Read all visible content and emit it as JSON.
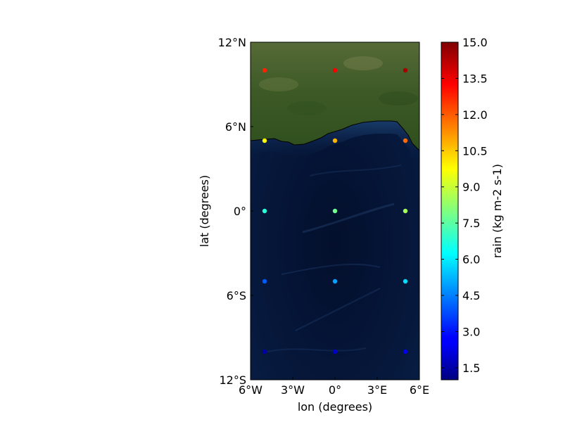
{
  "chart_data": {
    "type": "scatter",
    "xlabel": "lon (degrees)",
    "ylabel": "lat (degrees)",
    "xlim": [
      -6,
      6
    ],
    "ylim": [
      -12,
      12
    ],
    "x_ticks": [
      {
        "value": -6,
        "label": "6°W"
      },
      {
        "value": -3,
        "label": "3°W"
      },
      {
        "value": 0,
        "label": "0°"
      },
      {
        "value": 3,
        "label": "3°E"
      },
      {
        "value": 6,
        "label": "6°E"
      }
    ],
    "y_ticks": [
      {
        "value": 12,
        "label": "12°N"
      },
      {
        "value": 6,
        "label": "6°N"
      },
      {
        "value": 0,
        "label": "0°"
      },
      {
        "value": -6,
        "label": "6°S"
      },
      {
        "value": -12,
        "label": "12°S"
      }
    ],
    "colorbar": {
      "label": "rain (kg m-2 s-1)",
      "range": [
        1.0,
        15.0
      ],
      "colormap": "jet",
      "ticks": [
        1.5,
        3.0,
        4.5,
        6.0,
        7.5,
        9.0,
        10.5,
        12.0,
        13.5,
        15.0
      ],
      "tick_labels": [
        "1.5",
        "3.0",
        "4.5",
        "6.0",
        "7.5",
        "9.0",
        "10.5",
        "12.0",
        "13.5",
        "15.0"
      ]
    },
    "points": [
      {
        "lon": -5,
        "lat": 10,
        "value": 12.8
      },
      {
        "lon": 0,
        "lat": 10,
        "value": 13.3
      },
      {
        "lon": 5,
        "lat": 10,
        "value": 14.5
      },
      {
        "lon": -5,
        "lat": 5,
        "value": 9.8
      },
      {
        "lon": 0,
        "lat": 5,
        "value": 10.8
      },
      {
        "lon": 5,
        "lat": 5,
        "value": 11.8
      },
      {
        "lon": -5,
        "lat": 0,
        "value": 6.8
      },
      {
        "lon": 0,
        "lat": 0,
        "value": 7.8
      },
      {
        "lon": 5,
        "lat": 0,
        "value": 8.5
      },
      {
        "lon": -5,
        "lat": -5,
        "value": 4.0
      },
      {
        "lon": 0,
        "lat": -5,
        "value": 5.0
      },
      {
        "lon": 5,
        "lat": -5,
        "value": 5.8
      },
      {
        "lon": -5,
        "lat": -10,
        "value": 1.5
      },
      {
        "lon": 0,
        "lat": -10,
        "value": 2.0
      },
      {
        "lon": 5,
        "lat": -10,
        "value": 2.5
      }
    ],
    "coastline": [
      [
        -6,
        5.0
      ],
      [
        -5,
        5.1
      ],
      [
        -4.3,
        5.15
      ],
      [
        -3.8,
        4.95
      ],
      [
        -3.3,
        4.9
      ],
      [
        -2.9,
        4.7
      ],
      [
        -2.2,
        4.75
      ],
      [
        -1.5,
        5.0
      ],
      [
        -1.0,
        5.2
      ],
      [
        -0.5,
        5.5
      ],
      [
        0.5,
        5.8
      ],
      [
        1.2,
        6.1
      ],
      [
        2.0,
        6.3
      ],
      [
        3.0,
        6.4
      ],
      [
        4.0,
        6.4
      ],
      [
        4.4,
        6.35
      ],
      [
        4.8,
        5.9
      ],
      [
        5.2,
        5.4
      ],
      [
        5.5,
        4.8
      ],
      [
        6,
        4.3
      ]
    ],
    "background": "satellite imagery (land and ocean)",
    "colors": {
      "land": "#3f5a2a",
      "ocean": "#05163a",
      "coastline": "#000000"
    }
  }
}
